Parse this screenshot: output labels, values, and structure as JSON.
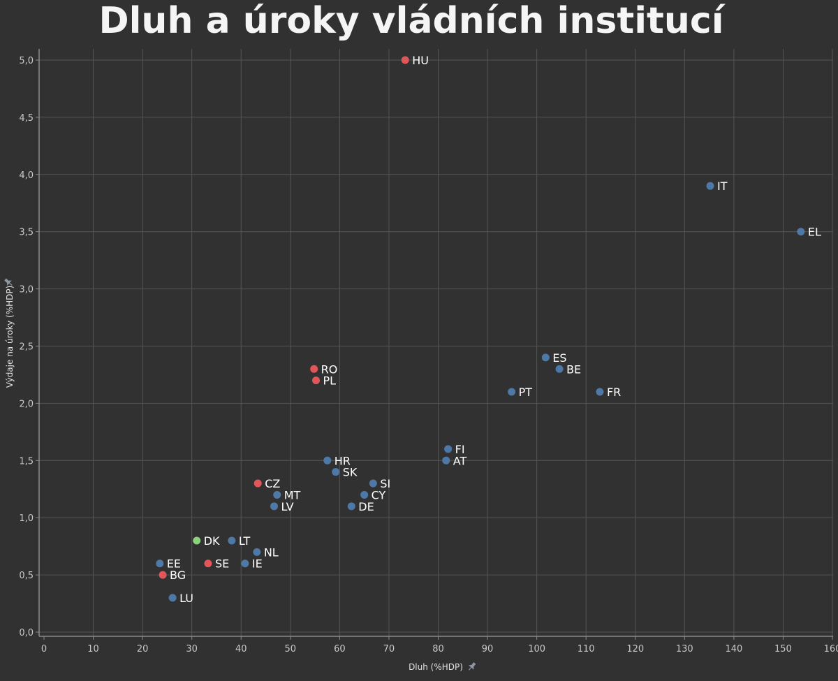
{
  "colors": {
    "background": "#313131",
    "grid": "#555555",
    "axis": "#8a8a8a",
    "blue": "#4e79a7",
    "red": "#e15759",
    "green": "#8cd17d"
  },
  "icons": {
    "x_axis_pin": "pin-icon",
    "y_axis_pin": "pin-icon"
  },
  "chart_data": {
    "type": "scatter",
    "title": "Dluh a úroky vládních institucí",
    "xlabel": "Dluh (%HDP)",
    "ylabel": "Výdaje na úroky (%HDP)",
    "xlim": [
      0,
      160
    ],
    "ylim": [
      0,
      5
    ],
    "grid": true,
    "x_ticks": [
      0,
      10,
      20,
      30,
      40,
      50,
      60,
      70,
      80,
      90,
      100,
      110,
      120,
      130,
      140,
      150,
      160
    ],
    "x_tick_labels": [
      "0",
      "10",
      "20",
      "30",
      "40",
      "50",
      "60",
      "70",
      "80",
      "90",
      "100",
      "110",
      "120",
      "130",
      "140",
      "150",
      "160"
    ],
    "y_ticks": [
      0,
      0.5,
      1.0,
      1.5,
      2.0,
      2.5,
      3.0,
      3.5,
      4.0,
      4.5,
      5.0
    ],
    "y_tick_labels": [
      "0,0",
      "0,5",
      "1,0",
      "1,5",
      "2,0",
      "2,5",
      "3,0",
      "3,5",
      "4,0",
      "4,5",
      "5,0"
    ],
    "points": [
      {
        "label": "HU",
        "x": 73.3,
        "y": 5.0,
        "color": "#e15759"
      },
      {
        "label": "IT",
        "x": 135.2,
        "y": 3.9,
        "color": "#4e79a7"
      },
      {
        "label": "EL",
        "x": 153.6,
        "y": 3.5,
        "color": "#4e79a7"
      },
      {
        "label": "ES",
        "x": 101.8,
        "y": 2.4,
        "color": "#4e79a7"
      },
      {
        "label": "BE",
        "x": 104.6,
        "y": 2.3,
        "color": "#4e79a7"
      },
      {
        "label": "RO",
        "x": 54.8,
        "y": 2.3,
        "color": "#e15759"
      },
      {
        "label": "PL",
        "x": 55.2,
        "y": 2.2,
        "color": "#e15759"
      },
      {
        "label": "PT",
        "x": 94.9,
        "y": 2.1,
        "color": "#4e79a7"
      },
      {
        "label": "FR",
        "x": 112.8,
        "y": 2.1,
        "color": "#4e79a7"
      },
      {
        "label": "FI",
        "x": 82.0,
        "y": 1.6,
        "color": "#4e79a7"
      },
      {
        "label": "AT",
        "x": 81.6,
        "y": 1.5,
        "color": "#4e79a7"
      },
      {
        "label": "HR",
        "x": 57.5,
        "y": 1.5,
        "color": "#4e79a7"
      },
      {
        "label": "SK",
        "x": 59.2,
        "y": 1.4,
        "color": "#4e79a7"
      },
      {
        "label": "SI",
        "x": 66.8,
        "y": 1.3,
        "color": "#4e79a7"
      },
      {
        "label": "CZ",
        "x": 43.4,
        "y": 1.3,
        "color": "#e15759"
      },
      {
        "label": "MT",
        "x": 47.3,
        "y": 1.2,
        "color": "#4e79a7"
      },
      {
        "label": "CY",
        "x": 65.0,
        "y": 1.2,
        "color": "#4e79a7"
      },
      {
        "label": "LV",
        "x": 46.7,
        "y": 1.1,
        "color": "#4e79a7"
      },
      {
        "label": "DE",
        "x": 62.4,
        "y": 1.1,
        "color": "#4e79a7"
      },
      {
        "label": "DK",
        "x": 31.0,
        "y": 0.8,
        "color": "#8cd17d"
      },
      {
        "label": "LT",
        "x": 38.1,
        "y": 0.8,
        "color": "#4e79a7"
      },
      {
        "label": "NL",
        "x": 43.2,
        "y": 0.7,
        "color": "#4e79a7"
      },
      {
        "label": "EE",
        "x": 23.5,
        "y": 0.6,
        "color": "#4e79a7"
      },
      {
        "label": "SE",
        "x": 33.3,
        "y": 0.6,
        "color": "#e15759"
      },
      {
        "label": "IE",
        "x": 40.8,
        "y": 0.6,
        "color": "#4e79a7"
      },
      {
        "label": "BG",
        "x": 24.1,
        "y": 0.5,
        "color": "#e15759"
      },
      {
        "label": "LU",
        "x": 26.1,
        "y": 0.3,
        "color": "#4e79a7"
      }
    ]
  }
}
